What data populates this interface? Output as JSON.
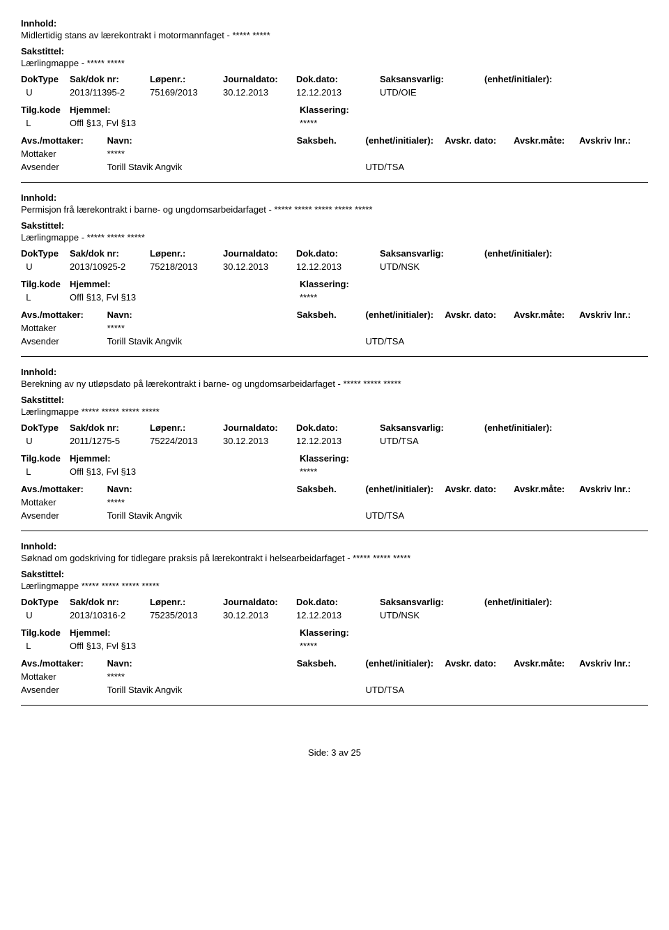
{
  "labels": {
    "innhold": "Innhold:",
    "sakstittel": "Sakstittel:",
    "doktype": "DokType",
    "sakdok": "Sak/dok nr:",
    "lopenr": "Løpenr.:",
    "journaldato": "Journaldato:",
    "dokdato": "Dok.dato:",
    "saksansvarlig": "Saksansvarlig:",
    "enhet_initialer": "(enhet/initialer):",
    "tilgkode": "Tilg.kode",
    "hjemmel": "Hjemmel:",
    "klassering": "Klassering:",
    "avs_mottaker": "Avs./mottaker:",
    "navn": "Navn:",
    "saksbeh": "Saksbeh.",
    "avskr_dato": "Avskr. dato:",
    "avskr_mate": "Avskr.måte:",
    "avskriv_lnr": "Avskriv lnr.:",
    "mottaker": "Mottaker",
    "avsender": "Avsender"
  },
  "entries": [
    {
      "innhold": "Midlertidig stans av lærekontrakt i motormannfaget - ***** *****",
      "sakstittel": "Lærlingmappe - ***** *****",
      "doktype": "U",
      "sakdok": "2013/11395-2",
      "lopenr": "75169/2013",
      "journaldato": "30.12.2013",
      "dokdato": "12.12.2013",
      "saksansvarlig": "UTD/OIE",
      "enhet": "",
      "tilgkode": "L",
      "hjemmel": "Offl §13, Fvl §13",
      "klassering": "*****",
      "show_avs_header": false,
      "mottaker_navn": "*****",
      "avsender_navn": "Torill Stavik Angvik",
      "avsender_enhet": "UTD/TSA"
    },
    {
      "innhold": "Permisjon frå lærekontrakt i barne- og ungdomsarbeidarfaget - ***** ***** ***** ***** *****",
      "sakstittel": "Lærlingmappe - ***** ***** *****",
      "doktype": "U",
      "sakdok": "2013/10925-2",
      "lopenr": "75218/2013",
      "journaldato": "30.12.2013",
      "dokdato": "12.12.2013",
      "saksansvarlig": "UTD/NSK",
      "enhet": "",
      "tilgkode": "L",
      "hjemmel": "Offl §13, Fvl §13",
      "klassering": "*****",
      "show_avs_header": false,
      "mottaker_navn": "*****",
      "avsender_navn": "Torill Stavik Angvik",
      "avsender_enhet": "UTD/TSA"
    },
    {
      "innhold": "Berekning av ny utløpsdato på lærekontrakt i barne- og ungdomsarbeidarfaget - ***** ***** *****",
      "sakstittel": "Lærlingmappe ***** ***** ***** *****",
      "doktype": "U",
      "sakdok": "2011/1275-5",
      "lopenr": "75224/2013",
      "journaldato": "30.12.2013",
      "dokdato": "12.12.2013",
      "saksansvarlig": "UTD/TSA",
      "enhet": "",
      "tilgkode": "L",
      "hjemmel": "Offl §13, Fvl §13",
      "klassering": "*****",
      "show_avs_header": true,
      "mottaker_navn": "*****",
      "avsender_navn": "Torill Stavik Angvik",
      "avsender_enhet": "UTD/TSA"
    },
    {
      "innhold": "Søknad om godskriving for tidlegare praksis på lærekontrakt i helsearbeidarfaget - ***** ***** *****",
      "sakstittel": "Lærlingmappe ***** ***** ***** *****",
      "doktype": "U",
      "sakdok": "2013/10316-2",
      "lopenr": "75235/2013",
      "journaldato": "30.12.2013",
      "dokdato": "12.12.2013",
      "saksansvarlig": "UTD/NSK",
      "enhet": "",
      "tilgkode": "L",
      "hjemmel": "Offl §13, Fvl §13",
      "klassering": "*****",
      "show_avs_header": true,
      "mottaker_navn": "*****",
      "avsender_navn": "Torill Stavik Angvik",
      "avsender_enhet": "UTD/TSA"
    }
  ],
  "footer": "Side: 3 av 25"
}
